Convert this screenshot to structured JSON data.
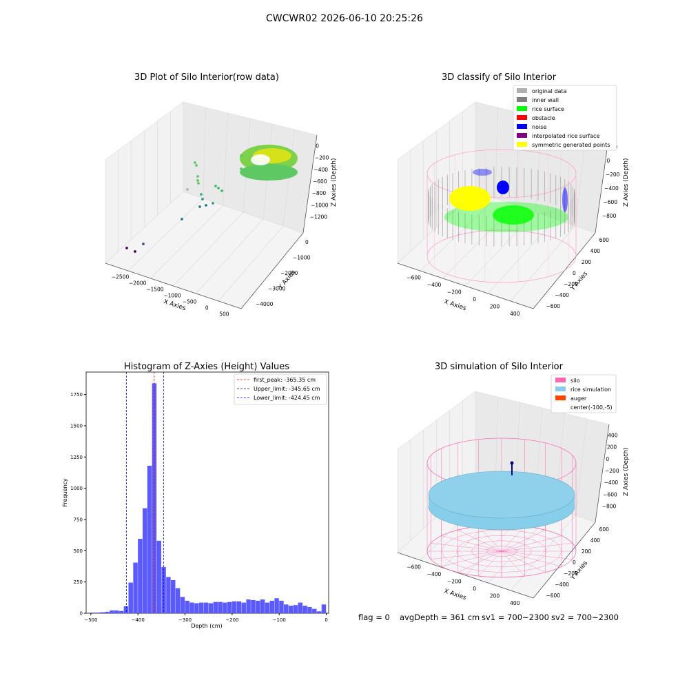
{
  "suptitle": "CWCWR02 2026-06-10 20:25:26",
  "footer": {
    "flag": "flag = 0",
    "avg": "avgDepth = 361 cm",
    "sv1": "sv1 = 700~2300",
    "sv2": "sv2 = 700~2300"
  },
  "colors": {
    "hist_bar": "#5a5aff",
    "peak_line": "#ff0000",
    "limit_line": "#0000ff",
    "silo": "#ff69b4",
    "rice": "#87ceeb",
    "auger": "#ff4500",
    "inner_wall": "#808080",
    "rice_surface": "#00ff00",
    "noise": "#0000ff",
    "symmetric": "#ffff00",
    "original": "#b0b0b0",
    "obstacle": "#ff0000",
    "interpolated": "#800080"
  },
  "chart_data": [
    {
      "type": "scatter3d",
      "title": "3D Plot of Silo Interior(row data)",
      "xlabel": "X Axies",
      "ylabel": "Y Axies",
      "zlabel": "Z Axies (Depth)",
      "x_ticks": [
        "−2500",
        "−2000",
        "−1500",
        "−1000",
        "−500",
        "0",
        "500"
      ],
      "y_ticks": [
        "−4000",
        "−3000",
        "−2000",
        "−1000",
        "0"
      ],
      "z_ticks": [
        "0",
        "−200",
        "−400",
        "−600",
        "−800",
        "−1000",
        "−1200"
      ]
    },
    {
      "type": "scatter3d",
      "title": "3D classify of Silo Interior",
      "xlabel": "X Axies",
      "ylabel": "Y Axies",
      "zlabel": "Z Axies (Depth)",
      "x_ticks": [
        "−600",
        "−400",
        "−200",
        "0",
        "200",
        "400"
      ],
      "y_ticks": [
        "−600",
        "−400",
        "−200",
        "0",
        "200",
        "400",
        "600"
      ],
      "z_ticks": [
        "200",
        "0",
        "−200",
        "−400",
        "−600",
        "−800"
      ],
      "legend": [
        {
          "label": "original data",
          "color": "#b0b0b0"
        },
        {
          "label": "inner wall",
          "color": "#808080"
        },
        {
          "label": "rice surface",
          "color": "#00ff00"
        },
        {
          "label": "obstacle",
          "color": "#ff0000"
        },
        {
          "label": "noise",
          "color": "#0000ff"
        },
        {
          "label": "interpolated rice surface",
          "color": "#800080"
        },
        {
          "label": "symmetric generated points",
          "color": "#ffff00"
        }
      ]
    },
    {
      "type": "bar",
      "title": "Histogram of Z-Axies (Height) Values",
      "xlabel": "Depth (cm)",
      "ylabel": "Frequency",
      "xlim": [
        -510,
        5
      ],
      "ylim": [
        0,
        1930
      ],
      "x_ticks": [
        -500,
        -400,
        -300,
        -200,
        -100,
        0
      ],
      "x_tick_labels": [
        "−500",
        "−400",
        "−300",
        "−200",
        "−100",
        "0"
      ],
      "y_ticks": [
        0,
        250,
        500,
        750,
        1000,
        1250,
        1500,
        1750
      ],
      "y_tick_labels": [
        "0",
        "250",
        "500",
        "750",
        "1000",
        "1250",
        "1500",
        "1750"
      ],
      "bin_start": -500,
      "bin_width": 10,
      "values": [
        5,
        5,
        8,
        12,
        22,
        22,
        18,
        55,
        245,
        405,
        595,
        840,
        1180,
        1840,
        580,
        370,
        290,
        265,
        200,
        130,
        100,
        85,
        80,
        85,
        85,
        80,
        90,
        90,
        85,
        90,
        95,
        95,
        85,
        110,
        105,
        100,
        110,
        85,
        100,
        120,
        100,
        70,
        60,
        65,
        85,
        60,
        50,
        35,
        15,
        70
      ],
      "lines": [
        {
          "x": -365.35,
          "label": "first_peak: -365.35 cm",
          "color": "#ff0000"
        },
        {
          "x": -345.65,
          "label": "Upper_limit: -345.65 cm",
          "color": "#0000ff"
        },
        {
          "x": -424.45,
          "label": "Lower_limit: -424.45 cm",
          "color": "#0000ff"
        }
      ]
    },
    {
      "type": "surface3d",
      "title": "3D simulation of Silo Interior",
      "xlabel": "X Axies",
      "ylabel": "Y Axies",
      "zlabel": "Z Axies (Depth)",
      "x_ticks": [
        "−600",
        "−400",
        "−200",
        "0",
        "200",
        "400"
      ],
      "y_ticks": [
        "−600",
        "−400",
        "−200",
        "0",
        "200",
        "400",
        "600"
      ],
      "z_ticks": [
        "400",
        "200",
        "0",
        "−200",
        "−400",
        "−600",
        "−800"
      ],
      "legend": [
        {
          "label": "silo",
          "color": "#ff69b4"
        },
        {
          "label": "rice simulation",
          "color": "#87ceeb"
        },
        {
          "label": "auger",
          "color": "#ff4500"
        },
        {
          "label": "center(-100,-5)",
          "color": "#ffffff"
        }
      ]
    }
  ]
}
